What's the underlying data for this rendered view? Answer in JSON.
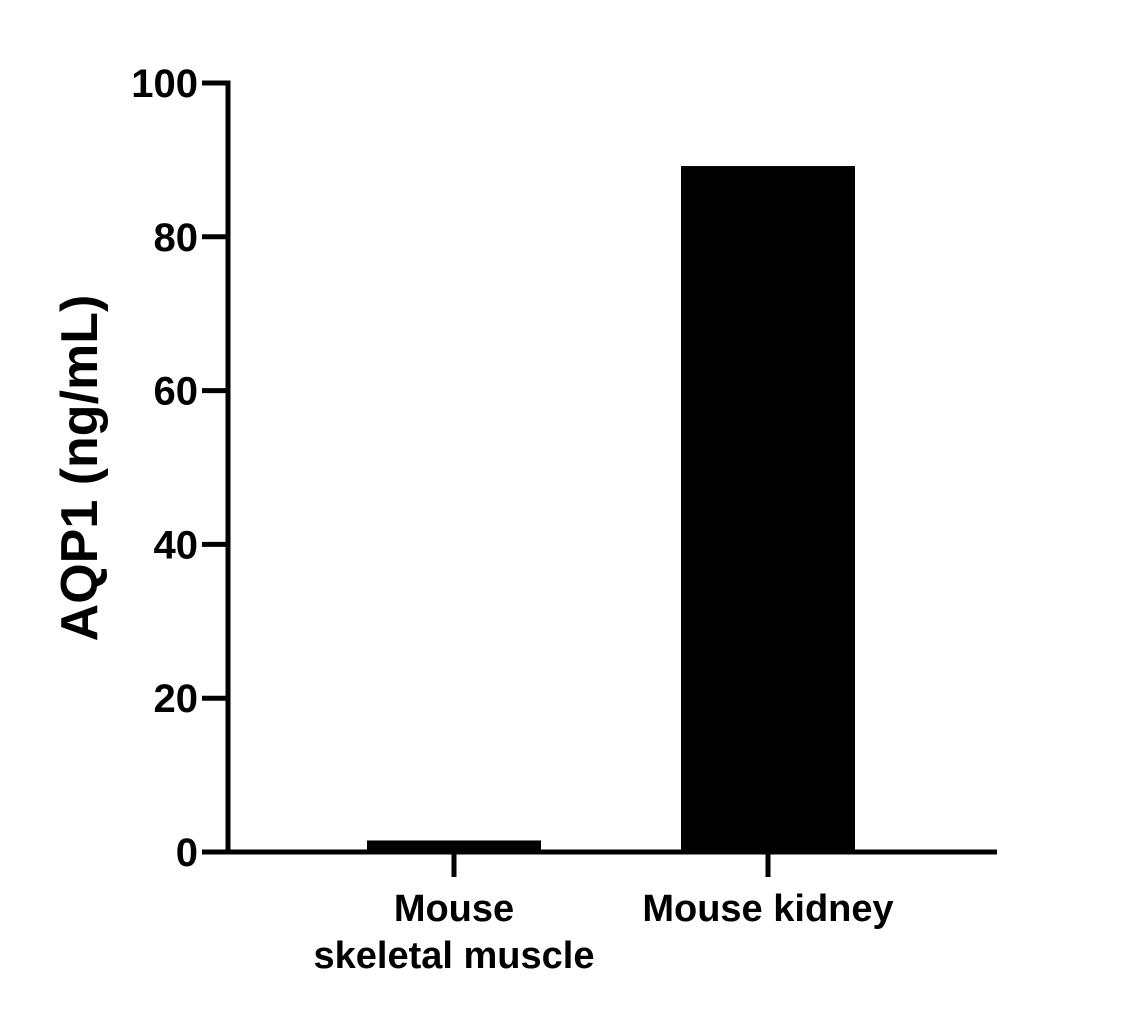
{
  "chart_data": {
    "type": "bar",
    "title": "",
    "xlabel": "",
    "ylabel": "AQP1 (ng/mL)",
    "ylim": [
      0,
      100
    ],
    "yticks": [
      0,
      20,
      40,
      60,
      80,
      100
    ],
    "categories": [
      [
        "Mouse",
        "skeletal muscle"
      ],
      [
        "Mouse kidney"
      ]
    ],
    "values": [
      1.5,
      89.2
    ],
    "grid": false,
    "legend": "none",
    "colors": {
      "bar": "#000000",
      "axis": "#000000"
    }
  }
}
